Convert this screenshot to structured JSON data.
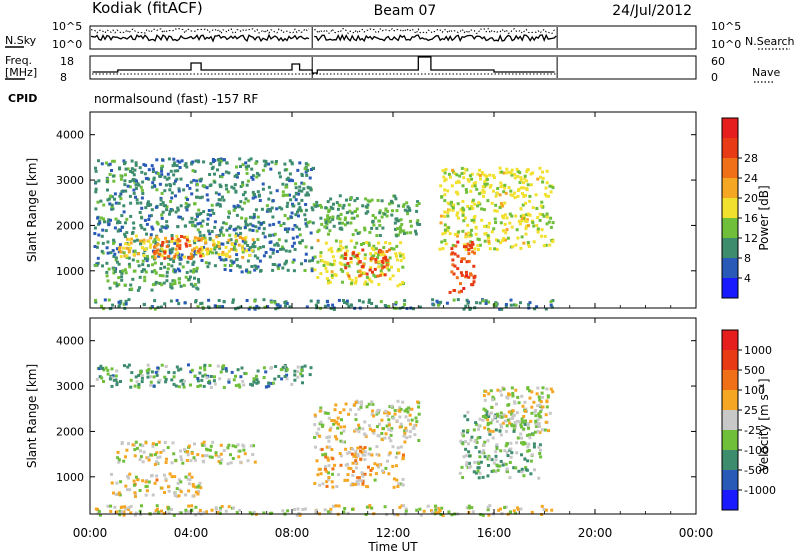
{
  "header": {
    "station": "Kodiak (fitACF)",
    "beam": "Beam 07",
    "date": "24/Jul/2012"
  },
  "noise_panel": {
    "left_label": "N.Sky",
    "right_label": "N.Search",
    "left_ticks": [
      "10^5",
      "10^0"
    ],
    "right_ticks": [
      "10^5",
      "10^0"
    ]
  },
  "freq_panel": {
    "left_label_1": "Freq.",
    "left_label_2": "[MHz]",
    "right_label": "Nave",
    "left_ticks": [
      "18",
      "8"
    ],
    "right_ticks": [
      "60",
      "0"
    ]
  },
  "cpid": {
    "label": "CPID",
    "text": "normalsound (fast) -157 RF"
  },
  "x_axis": {
    "label": "Time UT",
    "ticks": [
      "00:00",
      "04:00",
      "08:00",
      "12:00",
      "16:00",
      "20:00",
      "00:00"
    ]
  },
  "range_axis": {
    "label": "Slant Range [km]",
    "ticks": [
      "1000",
      "2000",
      "3000",
      "4000"
    ]
  },
  "power_colorbar": {
    "label": "Power [dB]",
    "ticks": [
      "4",
      "8",
      "12",
      "16",
      "20",
      "24",
      "28"
    ],
    "colors": [
      "#1a1aff",
      "#2a5ab8",
      "#3d8c6e",
      "#6fbf3a",
      "#f2e02e",
      "#f5a623",
      "#f07018",
      "#e83a14",
      "#e61e1e"
    ]
  },
  "velocity_colorbar": {
    "label": "Velocity [m s⁻¹]",
    "ticks": [
      "1000",
      "500",
      "100",
      "25",
      "-25",
      "-100",
      "-500",
      "-1000"
    ],
    "colors": [
      "#1a1aff",
      "#2a5ab8",
      "#3d8c6e",
      "#6fbf3a",
      "#c8c8c8",
      "#f5a623",
      "#f07018",
      "#e83a14",
      "#e61e1e"
    ]
  },
  "chart_data": {
    "type": "heatmap",
    "title": "Kodiak (fitACF) Beam 07 24/Jul/2012",
    "xlabel": "Time UT",
    "ylabel": "Slant Range [km]",
    "xlim": [
      0,
      24
    ],
    "ylim": [
      180,
      4500
    ],
    "data_end_hour": 18.5,
    "panels": [
      {
        "name": "Power [dB]",
        "scale": [
          0,
          30
        ],
        "regions": [
          {
            "t0": 0.1,
            "t1": 8.8,
            "r0": 1000,
            "r1": 3500,
            "value": 8
          },
          {
            "t0": 1.0,
            "t1": 6.5,
            "r0": 1300,
            "r1": 1800,
            "value": 16
          },
          {
            "t0": 2.4,
            "t1": 4.4,
            "r0": 1300,
            "r1": 1800,
            "value": 22
          },
          {
            "t0": 0.6,
            "t1": 4.4,
            "r0": 600,
            "r1": 1100,
            "value": 10
          },
          {
            "t0": 8.8,
            "t1": 12.4,
            "r0": 700,
            "r1": 1700,
            "value": 14
          },
          {
            "t0": 10.0,
            "t1": 11.8,
            "r0": 900,
            "r1": 1500,
            "value": 24
          },
          {
            "t0": 8.8,
            "t1": 13.0,
            "r0": 1800,
            "r1": 2700,
            "value": 10
          },
          {
            "t0": 13.8,
            "t1": 18.3,
            "r0": 1500,
            "r1": 3300,
            "value": 14
          },
          {
            "t0": 14.2,
            "t1": 15.2,
            "r0": 500,
            "r1": 1700,
            "value": 24
          },
          {
            "t0": 0.1,
            "t1": 18.4,
            "r0": 180,
            "r1": 400,
            "value": 8
          }
        ]
      },
      {
        "name": "Velocity [m s⁻¹]",
        "scale": [
          -1000,
          1000
        ],
        "regions": [
          {
            "t0": 0.1,
            "t1": 8.8,
            "r0": 3000,
            "r1": 3500,
            "value": -300
          },
          {
            "t0": 1.0,
            "t1": 6.5,
            "r0": 1300,
            "r1": 1800,
            "value": 0
          },
          {
            "t0": 0.6,
            "t1": 4.4,
            "r0": 600,
            "r1": 1100,
            "value": 60
          },
          {
            "t0": 8.8,
            "t1": 12.4,
            "r0": 800,
            "r1": 1700,
            "value": 120
          },
          {
            "t0": 8.8,
            "t1": 13.0,
            "r0": 1800,
            "r1": 2700,
            "value": 0
          },
          {
            "t0": 14.6,
            "t1": 17.8,
            "r0": 1000,
            "r1": 2500,
            "value": -200
          },
          {
            "t0": 15.5,
            "t1": 18.3,
            "r0": 2000,
            "r1": 3000,
            "value": 0
          },
          {
            "t0": 0.1,
            "t1": 18.4,
            "r0": 180,
            "r1": 400,
            "value": 0
          }
        ]
      }
    ]
  }
}
